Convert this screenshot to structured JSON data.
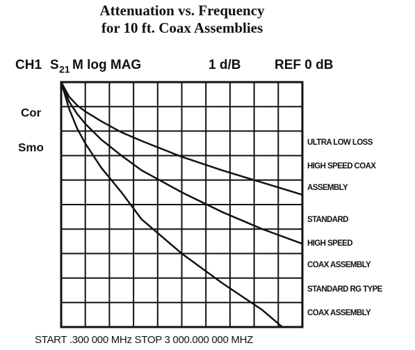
{
  "chart_data": {
    "type": "line",
    "title": [
      "Attenuation vs. Frequency",
      "for 10 ft. Coax Assemblies"
    ],
    "header": {
      "channel": "CH1",
      "param": "S",
      "param_sub": "21",
      "format": "M log MAG",
      "scale": "1 d/B",
      "ref": "REF 0 dB"
    },
    "annotations": [
      "Cor",
      "Smo"
    ],
    "footer": "START .300  000 MHz STOP 3  000.000  000 MHZ",
    "x": [
      0.3,
      100,
      200,
      300,
      500,
      750,
      1000,
      1500,
      2000,
      2500,
      3000
    ],
    "series": [
      {
        "name": [
          "ULTRA LOW LOSS",
          "HIGH SPEED COAX",
          "ASSEMBLY"
        ],
        "color": "#111111",
        "values": [
          0,
          -0.6,
          -0.95,
          -1.2,
          -1.6,
          -2.05,
          -2.4,
          -3.05,
          -3.6,
          -4.1,
          -4.6
        ]
      },
      {
        "name": [
          "STANDARD",
          "HIGH SPEED",
          "COAX ASSEMBLY"
        ],
        "color": "#111111",
        "values": [
          0,
          -0.8,
          -1.3,
          -1.7,
          -2.35,
          -3.0,
          -3.6,
          -4.5,
          -5.3,
          -6.0,
          -6.6
        ]
      },
      {
        "name": [
          "STANDARD RG TYPE",
          "COAX ASSEMBLY"
        ],
        "color": "#111111",
        "values": [
          0,
          -1.1,
          -1.9,
          -2.5,
          -3.5,
          -4.5,
          -5.6,
          -7.0,
          -8.2,
          -9.3,
          -10.7
        ]
      }
    ],
    "xlim": [
      0.3,
      3000
    ],
    "xticks": [
      0.3,
      300.27,
      600.24,
      900.21,
      1200.18,
      1500.15,
      1800.12,
      2100.09,
      2400.06,
      2700.03,
      3000
    ],
    "ylim": [
      -10,
      0
    ],
    "yticks": [
      0,
      -1,
      -2,
      -3,
      -4,
      -5,
      -6,
      -7,
      -8,
      -9,
      -10
    ],
    "grid": true
  }
}
